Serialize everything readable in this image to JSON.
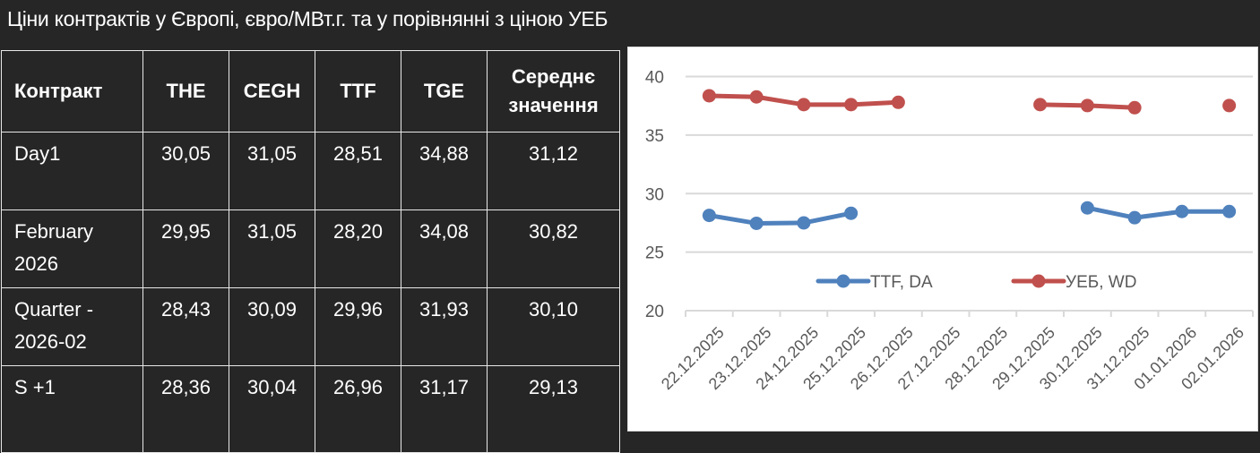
{
  "title": "Ціни контрактів у Європі, євро/МВт.г. та у порівнянні з ціною УЕБ",
  "table": {
    "headers": [
      "Контракт",
      "THE",
      "CEGH",
      "TTF",
      "TGE",
      "Середнє значення"
    ],
    "header_avg_line1": "Середнє",
    "header_avg_line2": "значення",
    "rows": [
      {
        "label_line1": "Day1",
        "label_line2": "",
        "values": [
          "30,05",
          "31,05",
          "28,51",
          "34,88",
          "31,12"
        ]
      },
      {
        "label_line1": "February",
        "label_line2": "2026",
        "values": [
          "29,95",
          "31,05",
          "28,20",
          "34,08",
          "30,82"
        ]
      },
      {
        "label_line1": "Quarter  -",
        "label_line2": "2026-02",
        "values": [
          "28,43",
          "30,09",
          "29,96",
          "31,93",
          "30,10"
        ]
      },
      {
        "label_line1": "S +1",
        "label_line2": "",
        "values": [
          "28,36",
          "30,04",
          "26,96",
          "31,17",
          "29,13"
        ]
      }
    ]
  },
  "chart_data": {
    "type": "line",
    "title": "",
    "xlabel": "",
    "ylabel": "",
    "ylim": [
      20,
      40
    ],
    "yticks": [
      20,
      25,
      30,
      35,
      40
    ],
    "grid": true,
    "legend_position": "inside-bottom-center",
    "categories": [
      "22.12.2025",
      "23.12.2025",
      "24.12.2025",
      "25.12.2025",
      "26.12.2025",
      "27.12.2025",
      "28.12.2025",
      "29.12.2025",
      "30.12.2025",
      "31.12.2025",
      "01.01.2026",
      "02.01.2026"
    ],
    "series": [
      {
        "name": "TTF, DA",
        "color": "#4f81bd",
        "values": [
          28.14,
          27.46,
          27.5,
          28.32,
          null,
          null,
          null,
          null,
          28.78,
          27.94,
          28.47,
          28.47
        ]
      },
      {
        "name": "УЕБ, WD",
        "color": "#c0504d",
        "values": [
          38.36,
          38.26,
          37.6,
          37.6,
          37.8,
          null,
          null,
          37.6,
          37.52,
          37.34,
          null,
          37.52
        ]
      }
    ]
  }
}
